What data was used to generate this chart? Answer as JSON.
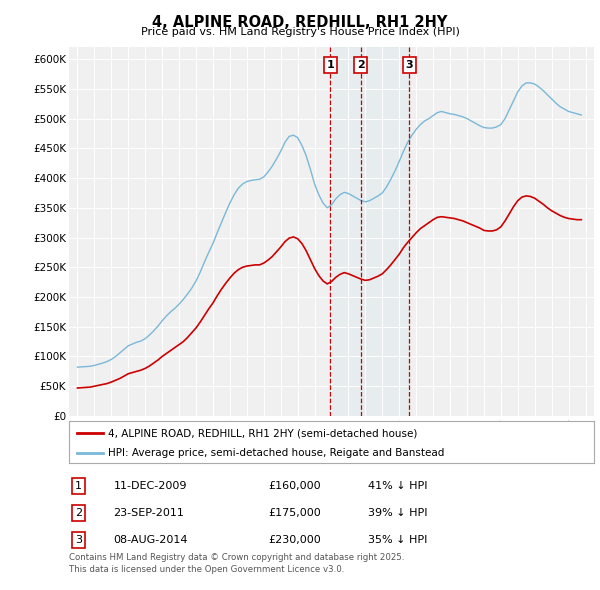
{
  "title": "4, ALPINE ROAD, REDHILL, RH1 2HY",
  "subtitle": "Price paid vs. HM Land Registry's House Price Index (HPI)",
  "background_color": "#ffffff",
  "plot_background": "#f0f0f0",
  "grid_color": "#ffffff",
  "red_line_color": "#cc0000",
  "blue_line_color": "#7ab8d9",
  "vline_color": "#cc0000",
  "transactions": [
    {
      "num": 1,
      "date": "11-DEC-2009",
      "price": 160000,
      "pct": "41",
      "x_year": 2009.94
    },
    {
      "num": 2,
      "date": "23-SEP-2011",
      "price": 175000,
      "pct": "39",
      "x_year": 2011.72
    },
    {
      "num": 3,
      "date": "08-AUG-2014",
      "price": 230000,
      "pct": "35",
      "x_year": 2014.6
    }
  ],
  "legend_label_red": "4, ALPINE ROAD, REDHILL, RH1 2HY (semi-detached house)",
  "legend_label_blue": "HPI: Average price, semi-detached house, Reigate and Banstead",
  "footer": "Contains HM Land Registry data © Crown copyright and database right 2025.\nThis data is licensed under the Open Government Licence v3.0.",
  "hpi_years": [
    1995,
    1995.25,
    1995.5,
    1995.75,
    1996,
    1996.25,
    1996.5,
    1996.75,
    1997,
    1997.25,
    1997.5,
    1997.75,
    1998,
    1998.25,
    1998.5,
    1998.75,
    1999,
    1999.25,
    1999.5,
    1999.75,
    2000,
    2000.25,
    2000.5,
    2000.75,
    2001,
    2001.25,
    2001.5,
    2001.75,
    2002,
    2002.25,
    2002.5,
    2002.75,
    2003,
    2003.25,
    2003.5,
    2003.75,
    2004,
    2004.25,
    2004.5,
    2004.75,
    2005,
    2005.25,
    2005.5,
    2005.75,
    2006,
    2006.25,
    2006.5,
    2006.75,
    2007,
    2007.25,
    2007.5,
    2007.75,
    2008,
    2008.25,
    2008.5,
    2008.75,
    2009,
    2009.25,
    2009.5,
    2009.75,
    2010,
    2010.25,
    2010.5,
    2010.75,
    2011,
    2011.25,
    2011.5,
    2011.75,
    2012,
    2012.25,
    2012.5,
    2012.75,
    2013,
    2013.25,
    2013.5,
    2013.75,
    2014,
    2014.25,
    2014.5,
    2014.75,
    2015,
    2015.25,
    2015.5,
    2015.75,
    2016,
    2016.25,
    2016.5,
    2016.75,
    2017,
    2017.25,
    2017.5,
    2017.75,
    2018,
    2018.25,
    2018.5,
    2018.75,
    2019,
    2019.25,
    2019.5,
    2019.75,
    2020,
    2020.25,
    2020.5,
    2020.75,
    2021,
    2021.25,
    2021.5,
    2021.75,
    2022,
    2022.25,
    2022.5,
    2022.75,
    2023,
    2023.25,
    2023.5,
    2023.75,
    2024,
    2024.25,
    2024.5,
    2024.75
  ],
  "hpi_values": [
    82000,
    82500,
    83000,
    83500,
    85000,
    87000,
    89000,
    91500,
    95000,
    100000,
    106000,
    112000,
    118000,
    121000,
    124000,
    126000,
    130000,
    136000,
    143000,
    151000,
    160000,
    168000,
    175000,
    181000,
    188000,
    196000,
    205000,
    215000,
    227000,
    242000,
    259000,
    275000,
    290000,
    308000,
    325000,
    342000,
    358000,
    372000,
    383000,
    390000,
    394000,
    396000,
    397000,
    398000,
    402000,
    410000,
    420000,
    432000,
    445000,
    460000,
    470000,
    472000,
    468000,
    455000,
    438000,
    415000,
    390000,
    372000,
    358000,
    350000,
    355000,
    365000,
    372000,
    376000,
    374000,
    370000,
    366000,
    362000,
    360000,
    362000,
    366000,
    370000,
    375000,
    385000,
    398000,
    412000,
    428000,
    445000,
    460000,
    472000,
    482000,
    490000,
    496000,
    500000,
    505000,
    510000,
    512000,
    510000,
    508000,
    507000,
    505000,
    503000,
    500000,
    496000,
    492000,
    488000,
    485000,
    484000,
    484000,
    486000,
    490000,
    500000,
    515000,
    530000,
    545000,
    555000,
    560000,
    560000,
    558000,
    553000,
    547000,
    540000,
    533000,
    526000,
    520000,
    516000,
    512000,
    510000,
    508000,
    506000
  ],
  "prop_years": [
    1995,
    1995.25,
    1995.5,
    1995.75,
    1996,
    1996.25,
    1996.5,
    1996.75,
    1997,
    1997.25,
    1997.5,
    1997.75,
    1998,
    1998.25,
    1998.5,
    1998.75,
    1999,
    1999.25,
    1999.5,
    1999.75,
    2000,
    2000.25,
    2000.5,
    2000.75,
    2001,
    2001.25,
    2001.5,
    2001.75,
    2002,
    2002.25,
    2002.5,
    2002.75,
    2003,
    2003.25,
    2003.5,
    2003.75,
    2004,
    2004.25,
    2004.5,
    2004.75,
    2005,
    2005.25,
    2005.5,
    2005.75,
    2006,
    2006.25,
    2006.5,
    2006.75,
    2007,
    2007.25,
    2007.5,
    2007.75,
    2008,
    2008.25,
    2008.5,
    2008.75,
    2009,
    2009.25,
    2009.5,
    2009.75,
    2010,
    2010.25,
    2010.5,
    2010.75,
    2011,
    2011.25,
    2011.5,
    2011.75,
    2012,
    2012.25,
    2012.5,
    2012.75,
    2013,
    2013.25,
    2013.5,
    2013.75,
    2014,
    2014.25,
    2014.5,
    2014.75,
    2015,
    2015.25,
    2015.5,
    2015.75,
    2016,
    2016.25,
    2016.5,
    2016.75,
    2017,
    2017.25,
    2017.5,
    2017.75,
    2018,
    2018.25,
    2018.5,
    2018.75,
    2019,
    2019.25,
    2019.5,
    2019.75,
    2020,
    2020.25,
    2020.5,
    2020.75,
    2021,
    2021.25,
    2021.5,
    2021.75,
    2022,
    2022.25,
    2022.5,
    2022.75,
    2023,
    2023.25,
    2023.5,
    2023.75,
    2024,
    2024.25,
    2024.5,
    2024.75
  ],
  "prop_values": [
    47000,
    47500,
    48000,
    48500,
    50000,
    51500,
    53000,
    54500,
    57000,
    60000,
    63000,
    67000,
    71000,
    73000,
    75000,
    77000,
    80000,
    84000,
    89000,
    94000,
    100000,
    105000,
    110000,
    115000,
    120000,
    125000,
    132000,
    140000,
    148000,
    158000,
    169000,
    180000,
    190000,
    202000,
    213000,
    223000,
    232000,
    240000,
    246000,
    250000,
    252000,
    253000,
    254000,
    254000,
    257000,
    262000,
    268000,
    276000,
    284000,
    293000,
    299000,
    301000,
    298000,
    290000,
    278000,
    263000,
    248000,
    236000,
    227000,
    222000,
    226000,
    233000,
    238000,
    241000,
    239000,
    236000,
    233000,
    230000,
    228000,
    229000,
    232000,
    235000,
    239000,
    246000,
    254000,
    263000,
    272000,
    283000,
    292000,
    300000,
    308000,
    315000,
    320000,
    325000,
    330000,
    334000,
    335000,
    334000,
    333000,
    332000,
    330000,
    328000,
    325000,
    322000,
    319000,
    316000,
    312000,
    311000,
    311000,
    313000,
    318000,
    328000,
    340000,
    352000,
    362000,
    368000,
    370000,
    369000,
    366000,
    361000,
    356000,
    350000,
    345000,
    341000,
    337000,
    334000,
    332000,
    331000,
    330000,
    330000
  ],
  "ylim": [
    0,
    620000
  ],
  "yticks": [
    0,
    50000,
    100000,
    150000,
    200000,
    250000,
    300000,
    350000,
    400000,
    450000,
    500000,
    550000,
    600000
  ],
  "ytick_labels": [
    "£0",
    "£50K",
    "£100K",
    "£150K",
    "£200K",
    "£250K",
    "£300K",
    "£350K",
    "£400K",
    "£450K",
    "£500K",
    "£550K",
    "£600K"
  ],
  "xlim": [
    1994.5,
    2025.5
  ],
  "xticks": [
    1995,
    1996,
    1997,
    1998,
    1999,
    2000,
    2001,
    2002,
    2003,
    2004,
    2005,
    2006,
    2007,
    2008,
    2009,
    2010,
    2011,
    2012,
    2013,
    2014,
    2015,
    2016,
    2017,
    2018,
    2019,
    2020,
    2021,
    2022,
    2023,
    2024,
    2025
  ]
}
